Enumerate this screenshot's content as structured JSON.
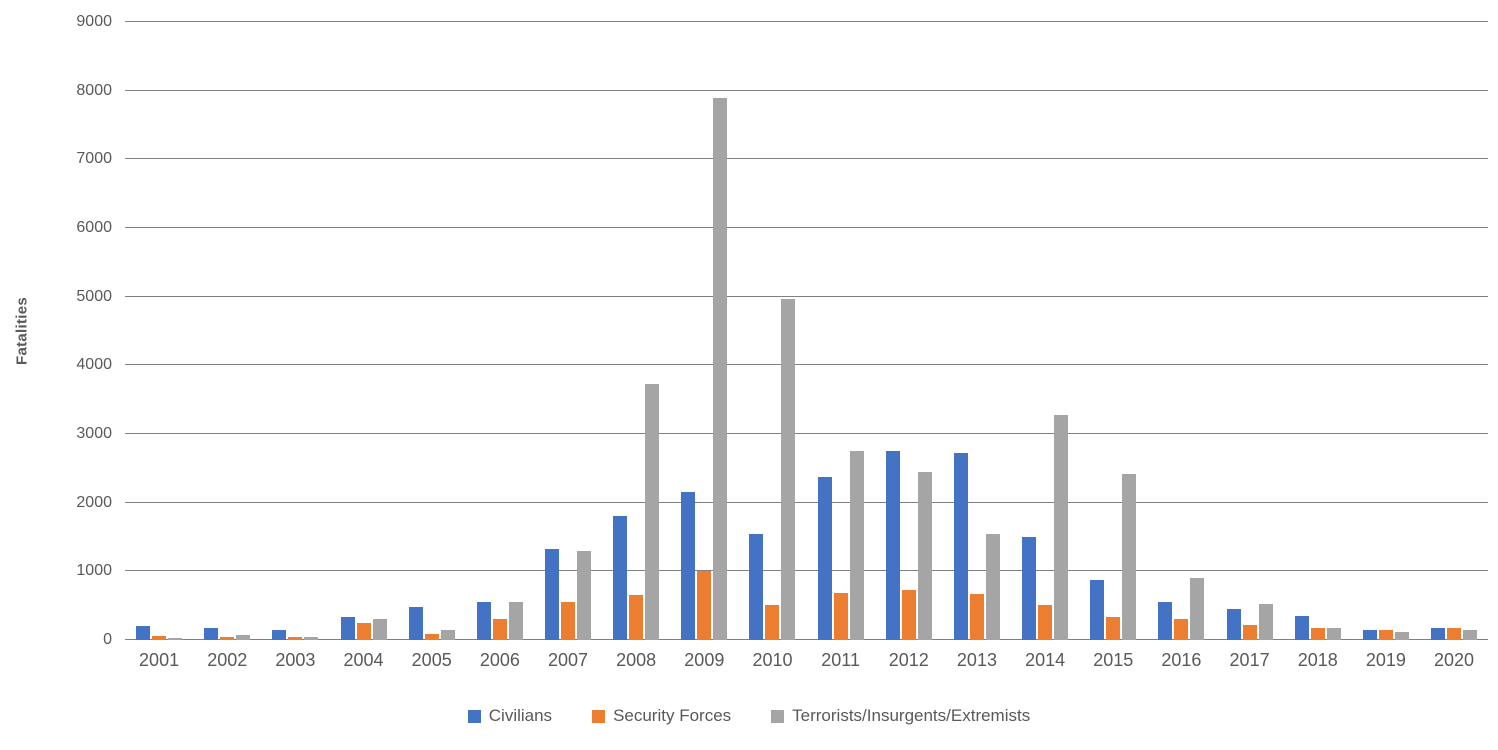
{
  "chart_data": {
    "type": "bar",
    "title": "",
    "xlabel": "",
    "ylabel": "Fatalities",
    "ylim": [
      0,
      9000
    ],
    "ytick_interval": 1000,
    "grid": true,
    "legend_position": "bottom",
    "categories": [
      "2001",
      "2002",
      "2003",
      "2004",
      "2005",
      "2006",
      "2007",
      "2008",
      "2009",
      "2010",
      "2011",
      "2012",
      "2013",
      "2014",
      "2015",
      "2016",
      "2017",
      "2018",
      "2019",
      "2020"
    ],
    "series": [
      {
        "name": "Civilians",
        "color": "#4472C4",
        "values": [
          210,
          170,
          140,
          340,
          480,
          560,
          1320,
          1800,
          2150,
          1550,
          2380,
          2750,
          2720,
          1500,
          870,
          560,
          450,
          350,
          150,
          170
        ]
      },
      {
        "name": "Security Forces",
        "color": "#ED7D31",
        "values": [
          60,
          50,
          40,
          250,
          90,
          300,
          550,
          650,
          1000,
          510,
          680,
          730,
          670,
          510,
          340,
          310,
          220,
          170,
          140,
          180
        ]
      },
      {
        "name": "Terrorists/Insurgents/Extremists",
        "color": "#A5A5A5",
        "values": [
          30,
          80,
          40,
          300,
          140,
          560,
          1290,
          3730,
          7890,
          4960,
          2750,
          2450,
          1550,
          3270,
          2420,
          900,
          530,
          170,
          110,
          150
        ]
      }
    ]
  },
  "colors": {
    "background": "#FFFFFF",
    "axis_text": "#595959",
    "gridline": "#808080"
  }
}
